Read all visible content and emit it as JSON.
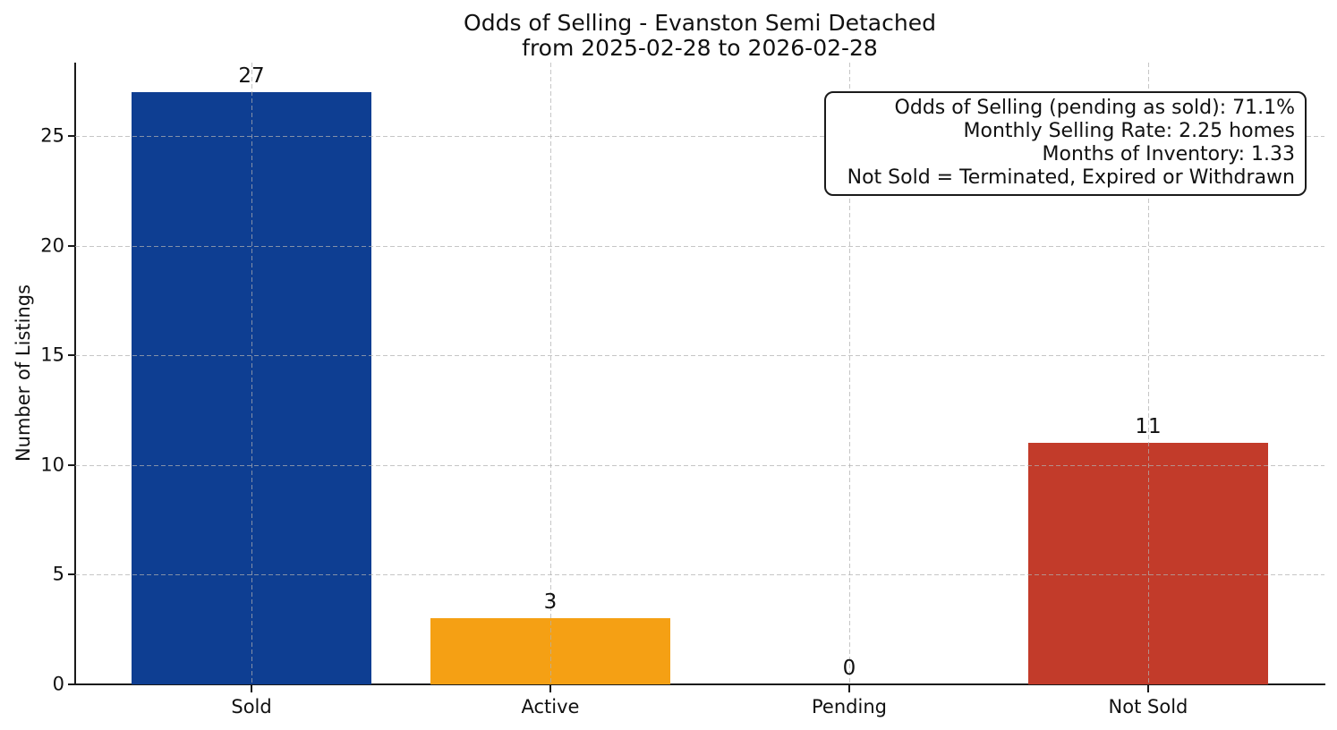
{
  "chart_data": {
    "type": "bar",
    "title": "Odds of Selling - Evanston Semi Detached",
    "subtitle": "from 2025-02-28 to 2026-02-28",
    "xlabel": "",
    "ylabel": "Number of Listings",
    "categories": [
      "Sold",
      "Active",
      "Pending",
      "Not Sold"
    ],
    "values": [
      27,
      3,
      0,
      11
    ],
    "value_labels": [
      "27",
      "3",
      "0",
      "11"
    ],
    "bar_colors": [
      "#0e3e92",
      "#f5a014",
      null,
      "#c23b2a"
    ],
    "yticks": [
      0,
      5,
      10,
      15,
      20,
      25
    ],
    "ylim": [
      0,
      28.35
    ],
    "grid": {
      "style": "dashed",
      "color": "#b0b0b0",
      "alpha": 0.7,
      "horizontal": true,
      "vertical": true,
      "above_bars": true
    },
    "legend": "none",
    "annotation": {
      "position": "top-right",
      "align": "right",
      "lines": [
        "Odds of Selling (pending as sold): 71.1%",
        "Monthly Selling Rate: 2.25 homes",
        "Months of Inventory: 1.33",
        "Not Sold = Terminated, Expired or Withdrawn"
      ]
    }
  }
}
